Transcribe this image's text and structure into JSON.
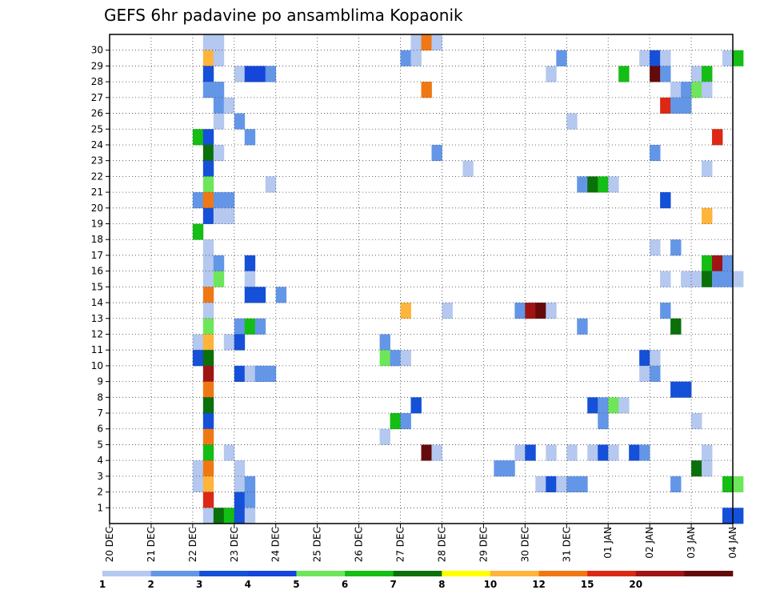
{
  "chart_data": {
    "type": "heatmap",
    "title": "GEFS 6hr padavine po ansamblima Kopaonik",
    "xlabel": "",
    "ylabel": "",
    "x_ticks": [
      "20 DEC",
      "21 DEC",
      "22 DEC",
      "23 DEC",
      "24 DEC",
      "25 DEC",
      "26 DEC",
      "27 DEC",
      "28 DEC",
      "29 DEC",
      "30 DEC",
      "31 DEC",
      "01 JAN",
      "02 JAN",
      "03 JAN",
      "04 JAN"
    ],
    "y_ticks": [
      1,
      2,
      3,
      4,
      5,
      6,
      7,
      8,
      9,
      10,
      11,
      12,
      13,
      14,
      15,
      16,
      17,
      18,
      19,
      20,
      21,
      22,
      23,
      24,
      25,
      26,
      27,
      28,
      29,
      30
    ],
    "y_range": [
      0,
      30
    ],
    "time_step_hours": 6,
    "grid": true,
    "colorbar": {
      "position": "bottom",
      "labels": [
        "1",
        "2",
        "3",
        "4",
        "5",
        "6",
        "7",
        "8",
        "10",
        "12",
        "15",
        "20"
      ],
      "colors": [
        "#b4c8f0",
        "#6496e8",
        "#1450d8",
        "#1446dc",
        "#6ee65a",
        "#14be14",
        "#0a700a",
        "#ffff00",
        "#ffb43c",
        "#f07814",
        "#dc2814",
        "#a01414",
        "#640a0a"
      ]
    },
    "cells": [
      [
        30,
        9,
        0
      ],
      [
        30,
        10,
        0
      ],
      [
        30,
        29,
        0
      ],
      [
        30,
        30,
        9
      ],
      [
        30,
        31,
        0
      ],
      [
        29,
        9,
        8
      ],
      [
        29,
        10,
        0
      ],
      [
        29,
        28,
        1
      ],
      [
        29,
        29,
        0
      ],
      [
        29,
        43,
        1
      ],
      [
        29,
        51,
        0
      ],
      [
        29,
        52,
        2
      ],
      [
        29,
        53,
        0
      ],
      [
        29,
        59,
        0
      ],
      [
        29,
        60,
        5
      ],
      [
        28,
        9,
        2
      ],
      [
        28,
        12,
        0
      ],
      [
        28,
        13,
        3
      ],
      [
        28,
        14,
        3
      ],
      [
        28,
        15,
        1
      ],
      [
        28,
        42,
        0
      ],
      [
        28,
        49,
        5
      ],
      [
        28,
        52,
        12
      ],
      [
        28,
        53,
        1
      ],
      [
        28,
        56,
        0
      ],
      [
        28,
        57,
        5
      ],
      [
        27,
        9,
        1
      ],
      [
        27,
        10,
        1
      ],
      [
        27,
        30,
        9
      ],
      [
        27,
        54,
        0
      ],
      [
        27,
        55,
        1
      ],
      [
        27,
        56,
        4
      ],
      [
        27,
        57,
        0
      ],
      [
        26,
        10,
        1
      ],
      [
        26,
        11,
        0
      ],
      [
        26,
        53,
        10
      ],
      [
        26,
        54,
        1
      ],
      [
        26,
        55,
        1
      ],
      [
        25,
        10,
        0
      ],
      [
        25,
        12,
        1
      ],
      [
        25,
        44,
        0
      ],
      [
        24,
        8,
        5
      ],
      [
        24,
        9,
        2
      ],
      [
        24,
        13,
        1
      ],
      [
        24,
        58,
        10
      ],
      [
        23,
        9,
        6
      ],
      [
        23,
        10,
        0
      ],
      [
        23,
        31,
        1
      ],
      [
        23,
        52,
        1
      ],
      [
        22,
        9,
        2
      ],
      [
        22,
        34,
        0
      ],
      [
        22,
        57,
        0
      ],
      [
        21,
        9,
        4
      ],
      [
        21,
        15,
        0
      ],
      [
        21,
        45,
        1
      ],
      [
        21,
        46,
        6
      ],
      [
        21,
        47,
        5
      ],
      [
        21,
        48,
        0
      ],
      [
        20,
        8,
        1
      ],
      [
        20,
        9,
        9
      ],
      [
        20,
        10,
        1
      ],
      [
        20,
        11,
        1
      ],
      [
        20,
        53,
        2
      ],
      [
        19,
        9,
        2
      ],
      [
        19,
        10,
        0
      ],
      [
        19,
        11,
        0
      ],
      [
        19,
        57,
        8
      ],
      [
        18,
        8,
        5
      ],
      [
        17,
        9,
        0
      ],
      [
        17,
        52,
        0
      ],
      [
        17,
        54,
        1
      ],
      [
        16,
        9,
        0
      ],
      [
        16,
        10,
        1
      ],
      [
        16,
        13,
        2
      ],
      [
        16,
        57,
        5
      ],
      [
        16,
        58,
        11
      ],
      [
        16,
        59,
        1
      ],
      [
        15,
        9,
        0
      ],
      [
        15,
        10,
        4
      ],
      [
        15,
        13,
        0
      ],
      [
        15,
        53,
        0
      ],
      [
        15,
        55,
        0
      ],
      [
        15,
        56,
        0
      ],
      [
        15,
        57,
        6
      ],
      [
        15,
        58,
        1
      ],
      [
        15,
        59,
        1
      ],
      [
        15,
        60,
        0
      ],
      [
        14,
        9,
        9
      ],
      [
        14,
        13,
        2
      ],
      [
        14,
        14,
        2
      ],
      [
        14,
        16,
        1
      ],
      [
        13,
        9,
        0
      ],
      [
        13,
        28,
        8
      ],
      [
        13,
        32,
        0
      ],
      [
        13,
        39,
        1
      ],
      [
        13,
        40,
        11
      ],
      [
        13,
        41,
        12
      ],
      [
        13,
        42,
        0
      ],
      [
        13,
        53,
        1
      ],
      [
        12,
        9,
        4
      ],
      [
        12,
        12,
        1
      ],
      [
        12,
        13,
        5
      ],
      [
        12,
        14,
        1
      ],
      [
        12,
        45,
        1
      ],
      [
        12,
        54,
        6
      ],
      [
        11,
        8,
        0
      ],
      [
        11,
        9,
        8
      ],
      [
        11,
        11,
        0
      ],
      [
        11,
        12,
        2
      ],
      [
        11,
        26,
        1
      ],
      [
        10,
        8,
        2
      ],
      [
        10,
        9,
        6
      ],
      [
        10,
        26,
        4
      ],
      [
        10,
        27,
        1
      ],
      [
        10,
        28,
        0
      ],
      [
        10,
        51,
        2
      ],
      [
        10,
        52,
        0
      ],
      [
        9,
        9,
        11
      ],
      [
        9,
        12,
        2
      ],
      [
        9,
        13,
        0
      ],
      [
        9,
        14,
        1
      ],
      [
        9,
        15,
        1
      ],
      [
        9,
        51,
        0
      ],
      [
        9,
        52,
        1
      ],
      [
        8,
        9,
        9
      ],
      [
        8,
        54,
        2
      ],
      [
        8,
        55,
        2
      ],
      [
        7,
        9,
        6
      ],
      [
        7,
        29,
        2
      ],
      [
        7,
        46,
        2
      ],
      [
        7,
        47,
        1
      ],
      [
        7,
        48,
        4
      ],
      [
        7,
        49,
        0
      ],
      [
        6,
        9,
        2
      ],
      [
        6,
        27,
        5
      ],
      [
        6,
        28,
        1
      ],
      [
        6,
        47,
        1
      ],
      [
        6,
        56,
        0
      ],
      [
        5,
        9,
        9
      ],
      [
        5,
        26,
        0
      ],
      [
        4,
        9,
        5
      ],
      [
        4,
        11,
        0
      ],
      [
        4,
        30,
        12
      ],
      [
        4,
        31,
        0
      ],
      [
        4,
        39,
        0
      ],
      [
        4,
        40,
        2
      ],
      [
        4,
        42,
        0
      ],
      [
        4,
        44,
        0
      ],
      [
        4,
        46,
        0
      ],
      [
        4,
        47,
        2
      ],
      [
        4,
        48,
        0
      ],
      [
        4,
        50,
        2
      ],
      [
        4,
        51,
        1
      ],
      [
        4,
        57,
        0
      ],
      [
        3,
        8,
        0
      ],
      [
        3,
        9,
        9
      ],
      [
        3,
        12,
        0
      ],
      [
        3,
        37,
        1
      ],
      [
        3,
        38,
        1
      ],
      [
        3,
        56,
        6
      ],
      [
        3,
        57,
        0
      ],
      [
        2,
        8,
        0
      ],
      [
        2,
        9,
        8
      ],
      [
        2,
        12,
        0
      ],
      [
        2,
        13,
        1
      ],
      [
        2,
        41,
        0
      ],
      [
        2,
        42,
        2
      ],
      [
        2,
        43,
        0
      ],
      [
        2,
        44,
        1
      ],
      [
        2,
        45,
        1
      ],
      [
        2,
        54,
        1
      ],
      [
        2,
        59,
        5
      ],
      [
        2,
        60,
        4
      ],
      [
        1,
        9,
        10
      ],
      [
        1,
        12,
        2
      ],
      [
        1,
        13,
        1
      ],
      [
        0,
        9,
        0
      ],
      [
        0,
        10,
        6
      ],
      [
        0,
        11,
        5
      ],
      [
        0,
        12,
        2
      ],
      [
        0,
        13,
        0
      ],
      [
        0,
        59,
        2
      ],
      [
        0,
        60,
        2
      ]
    ]
  }
}
